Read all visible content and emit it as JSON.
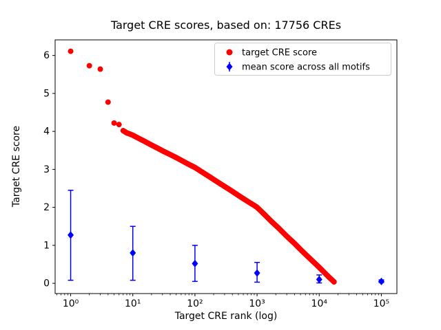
{
  "chart_data": {
    "type": "scatter",
    "title": "Target CRE scores, based on: 17756 CREs",
    "xlabel": "Target CRE rank (log)",
    "ylabel": "Target CRE score",
    "x_scale": "log",
    "x_ticks": [
      1,
      10,
      100,
      1000,
      10000,
      100000
    ],
    "x_tick_labels": [
      "10⁰",
      "10¹",
      "10²",
      "10³",
      "10⁴",
      "10⁵"
    ],
    "y_ticks": [
      0,
      1,
      2,
      3,
      4,
      5,
      6
    ],
    "y_tick_labels": [
      "0",
      "1",
      "2",
      "3",
      "4",
      "5",
      "6"
    ],
    "x_range_log10": [
      -0.25,
      5.25
    ],
    "y_range": [
      -0.27,
      6.41
    ],
    "grid": false,
    "legend_position": "upper right",
    "series": [
      {
        "name": "target CRE score",
        "marker": "circle",
        "color": "#ff0000",
        "dense_from_rank": 7,
        "points": [
          [
            1,
            6.11
          ],
          [
            2,
            5.73
          ],
          [
            3,
            5.64
          ],
          [
            4,
            4.77
          ],
          [
            5,
            4.22
          ],
          [
            6,
            4.18
          ],
          [
            7,
            4.02
          ],
          [
            8,
            3.96
          ],
          [
            9,
            3.93
          ],
          [
            10,
            3.9
          ],
          [
            12,
            3.83
          ],
          [
            15,
            3.75
          ],
          [
            20,
            3.64
          ],
          [
            25,
            3.56
          ],
          [
            30,
            3.49
          ],
          [
            40,
            3.39
          ],
          [
            50,
            3.31
          ],
          [
            60,
            3.24
          ],
          [
            80,
            3.13
          ],
          [
            100,
            3.05
          ],
          [
            130,
            2.93
          ],
          [
            170,
            2.81
          ],
          [
            220,
            2.69
          ],
          [
            300,
            2.55
          ],
          [
            400,
            2.42
          ],
          [
            550,
            2.27
          ],
          [
            700,
            2.16
          ],
          [
            900,
            2.05
          ],
          [
            1000,
            2.0
          ],
          [
            1300,
            1.82
          ],
          [
            1700,
            1.63
          ],
          [
            2200,
            1.46
          ],
          [
            3000,
            1.24
          ],
          [
            4000,
            1.05
          ],
          [
            5000,
            0.89
          ],
          [
            6500,
            0.71
          ],
          [
            8000,
            0.57
          ],
          [
            10000,
            0.42
          ],
          [
            12000,
            0.29
          ],
          [
            14000,
            0.18
          ],
          [
            16000,
            0.09
          ],
          [
            17000,
            0.05
          ],
          [
            17756,
            0.02
          ]
        ]
      },
      {
        "name": "mean score across all motifs",
        "marker": "diamond",
        "color": "#0000ff",
        "x": [
          1,
          10,
          100,
          1000,
          10000,
          100000
        ],
        "y": [
          1.27,
          0.8,
          0.52,
          0.27,
          0.1,
          0.05
        ],
        "err_low": [
          0.08,
          0.08,
          0.05,
          0.03,
          0.01,
          0.02
        ],
        "err_high": [
          2.45,
          1.5,
          1.0,
          0.55,
          0.22,
          0.09
        ]
      }
    ]
  }
}
